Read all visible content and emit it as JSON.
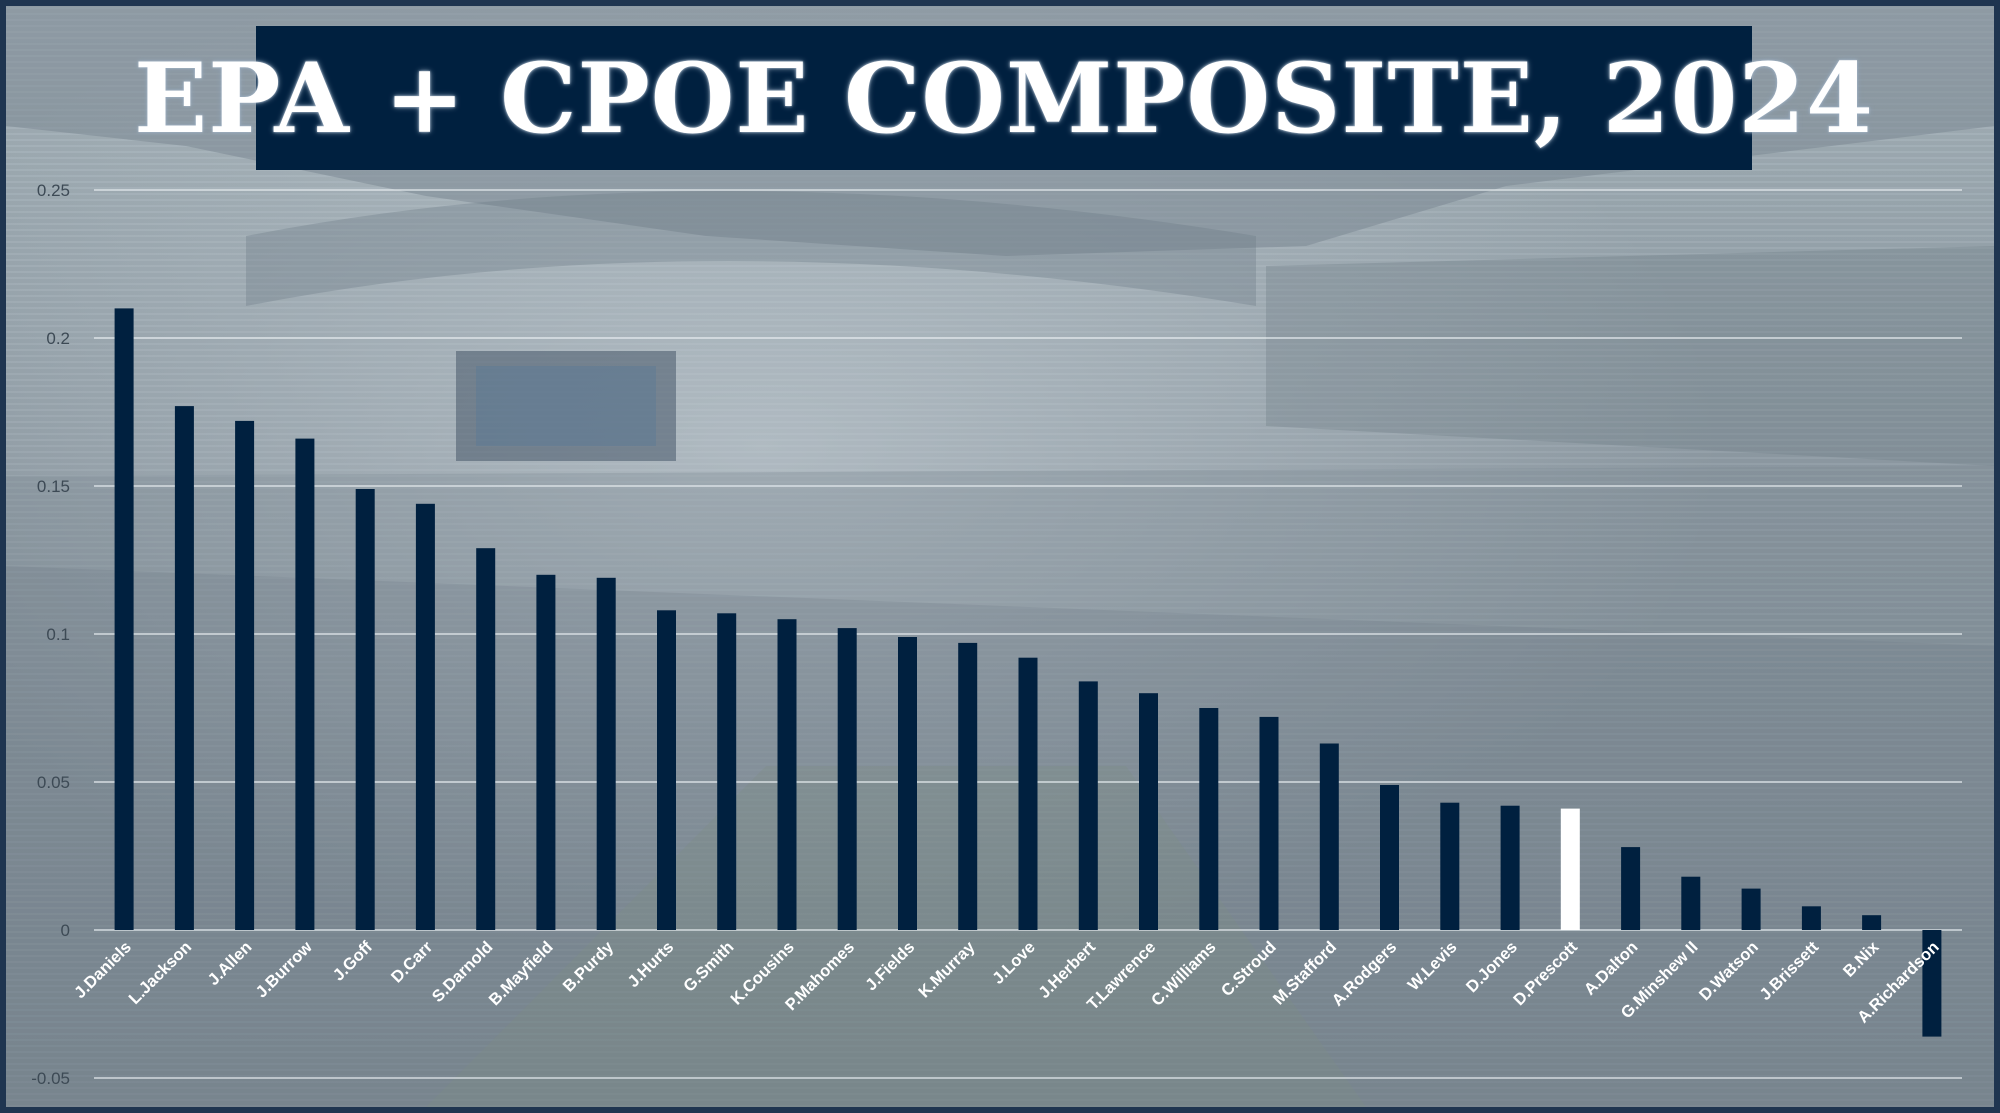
{
  "title": "EPA + CPOE COMPOSITE, 2024",
  "colors": {
    "bar": "#00203f",
    "highlight": "#ffffff",
    "banner": "#00203f",
    "gridline": "#e6ecef"
  },
  "chart_data": {
    "type": "bar",
    "title": "EPA + CPOE COMPOSITE, 2024",
    "xlabel": "",
    "ylabel": "",
    "ylim": [
      -0.05,
      0.25
    ],
    "yticks": [
      -0.05,
      0,
      0.05,
      0.1,
      0.15,
      0.2,
      0.25
    ],
    "ytick_labels": [
      "-0.05",
      "0",
      "0.05",
      "0.1",
      "0.15",
      "0.2",
      "0.25"
    ],
    "grid": true,
    "highlight_category": "D.Prescott",
    "categories": [
      "J.Daniels",
      "L.Jackson",
      "J.Allen",
      "J.Burrow",
      "J.Goff",
      "D.Carr",
      "S.Darnold",
      "B.Mayfield",
      "B.Purdy",
      "J.Hurts",
      "G.Smith",
      "K.Cousins",
      "P.Mahomes",
      "J.Fields",
      "K.Murray",
      "J.Love",
      "J.Herbert",
      "T.Lawrence",
      "C.Williams",
      "C.Stroud",
      "M.Stafford",
      "A.Rodgers",
      "W.Levis",
      "D.Jones",
      "D.Prescott",
      "A.Dalton",
      "G.Minshew II",
      "D.Watson",
      "J.Brissett",
      "B.Nix",
      "A.Richardson"
    ],
    "values": [
      0.21,
      0.177,
      0.172,
      0.166,
      0.149,
      0.144,
      0.129,
      0.12,
      0.119,
      0.108,
      0.107,
      0.105,
      0.102,
      0.099,
      0.097,
      0.092,
      0.084,
      0.08,
      0.075,
      0.072,
      0.063,
      0.049,
      0.043,
      0.042,
      0.041,
      0.028,
      0.018,
      0.014,
      0.008,
      0.005,
      -0.036
    ]
  }
}
